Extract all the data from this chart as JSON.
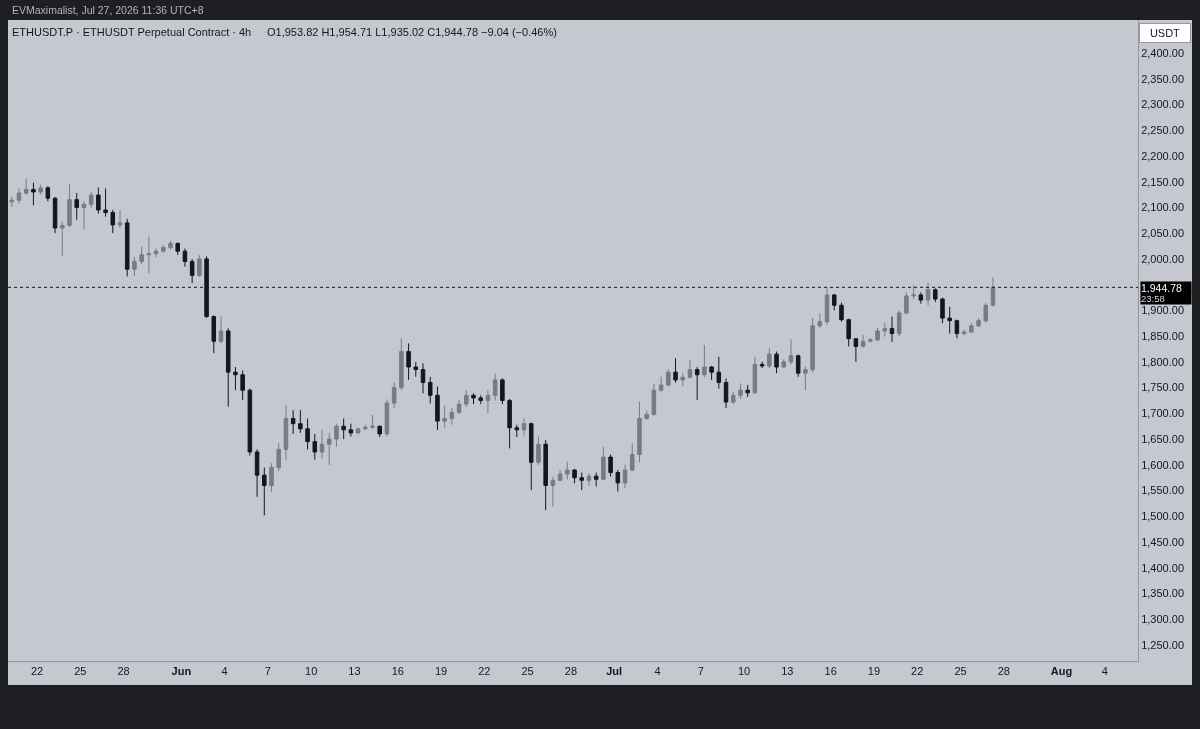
{
  "chart_data": {
    "type": "candlestick",
    "title": "ETHUSDT.P · ETHUSDT Perpetual Contract · 4h",
    "subtitle": "O1,953.82 H1,954.71 L1,935.02 C1,944.78 −9.04 (−0.46%)",
    "ylabel": "USDT",
    "annotations": [
      "EVMaximalist, Jul 27, 2026 11:36 UTC+8",
      "23:58"
    ],
    "x": [
      "2026-05-20T06:00",
      "2026-05-20T18:00",
      "2026-05-21T06:00",
      "2026-05-21T18:00",
      "2026-05-22T06:00",
      "2026-05-22T18:00",
      "2026-05-23T06:00",
      "2026-05-23T18:00",
      "2026-05-24T06:00",
      "2026-05-24T18:00",
      "2026-05-25T06:00",
      "2026-05-25T18:00",
      "2026-05-26T06:00",
      "2026-05-26T18:00",
      "2026-05-27T06:00",
      "2026-05-27T18:00",
      "2026-05-28T06:00",
      "2026-05-28T18:00",
      "2026-05-29T06:00",
      "2026-05-29T18:00",
      "2026-05-30T06:00",
      "2026-05-30T18:00",
      "2026-05-31T06:00",
      "2026-05-31T18:00",
      "2026-06-01T06:00",
      "2026-06-01T18:00",
      "2026-06-02T06:00",
      "2026-06-02T18:00",
      "2026-06-03T06:00",
      "2026-06-03T18:00",
      "2026-06-04T06:00",
      "2026-06-04T18:00",
      "2026-06-05T06:00",
      "2026-06-05T18:00",
      "2026-06-06T06:00",
      "2026-06-06T18:00",
      "2026-06-07T06:00",
      "2026-06-07T18:00",
      "2026-06-08T06:00",
      "2026-06-08T18:00",
      "2026-06-09T06:00",
      "2026-06-09T18:00",
      "2026-06-10T06:00",
      "2026-06-10T18:00",
      "2026-06-11T06:00",
      "2026-06-11T18:00",
      "2026-06-12T06:00",
      "2026-06-12T18:00",
      "2026-06-13T06:00",
      "2026-06-13T18:00",
      "2026-06-14T06:00",
      "2026-06-14T18:00",
      "2026-06-15T06:00",
      "2026-06-15T18:00",
      "2026-06-16T06:00",
      "2026-06-16T18:00",
      "2026-06-17T06:00",
      "2026-06-17T18:00",
      "2026-06-18T06:00",
      "2026-06-18T18:00",
      "2026-06-19T06:00",
      "2026-06-19T18:00",
      "2026-06-20T06:00",
      "2026-06-20T18:00",
      "2026-06-21T06:00",
      "2026-06-21T18:00",
      "2026-06-22T06:00",
      "2026-06-22T18:00",
      "2026-06-23T06:00",
      "2026-06-23T18:00",
      "2026-06-24T06:00",
      "2026-06-24T18:00",
      "2026-06-25T06:00",
      "2026-06-25T18:00",
      "2026-06-26T06:00",
      "2026-06-26T18:00",
      "2026-06-27T06:00",
      "2026-06-27T18:00",
      "2026-06-28T06:00",
      "2026-06-28T18:00",
      "2026-06-29T06:00",
      "2026-06-29T18:00",
      "2026-06-30T06:00",
      "2026-06-30T18:00",
      "2026-07-01T06:00",
      "2026-07-01T18:00",
      "2026-07-02T06:00",
      "2026-07-02T18:00",
      "2026-07-03T06:00",
      "2026-07-03T18:00",
      "2026-07-04T06:00",
      "2026-07-04T18:00",
      "2026-07-05T06:00",
      "2026-07-05T18:00",
      "2026-07-06T06:00",
      "2026-07-06T18:00",
      "2026-07-07T06:00",
      "2026-07-07T18:00",
      "2026-07-08T06:00",
      "2026-07-08T18:00",
      "2026-07-09T06:00",
      "2026-07-09T18:00",
      "2026-07-10T06:00",
      "2026-07-10T18:00",
      "2026-07-11T06:00",
      "2026-07-11T18:00",
      "2026-07-12T06:00",
      "2026-07-12T18:00",
      "2026-07-13T06:00",
      "2026-07-13T18:00",
      "2026-07-14T06:00",
      "2026-07-14T18:00",
      "2026-07-15T06:00",
      "2026-07-15T18:00",
      "2026-07-16T06:00",
      "2026-07-16T18:00",
      "2026-07-17T06:00",
      "2026-07-17T18:00",
      "2026-07-18T06:00",
      "2026-07-18T18:00",
      "2026-07-19T06:00",
      "2026-07-19T18:00",
      "2026-07-20T06:00",
      "2026-07-20T18:00",
      "2026-07-21T06:00",
      "2026-07-21T18:00",
      "2026-07-22T06:00",
      "2026-07-22T18:00",
      "2026-07-23T06:00",
      "2026-07-23T18:00",
      "2026-07-24T06:00",
      "2026-07-24T18:00",
      "2026-07-25T06:00",
      "2026-07-25T18:00",
      "2026-07-26T06:00",
      "2026-07-26T18:00",
      "2026-07-27T06:00"
    ],
    "ohlc": [
      [
        2111,
        2121,
        2101,
        2114
      ],
      [
        2114,
        2137,
        2108,
        2128
      ],
      [
        2128,
        2155,
        2124,
        2135
      ],
      [
        2135,
        2148,
        2104,
        2130
      ],
      [
        2130,
        2144,
        2125,
        2138
      ],
      [
        2138,
        2141,
        2112,
        2118
      ],
      [
        2118,
        2120,
        2050,
        2060
      ],
      [
        2060,
        2072,
        2006,
        2065
      ],
      [
        2065,
        2146,
        2062,
        2115
      ],
      [
        2115,
        2128,
        2076,
        2100
      ],
      [
        2100,
        2112,
        2058,
        2106
      ],
      [
        2106,
        2130,
        2099,
        2124
      ],
      [
        2124,
        2139,
        2088,
        2095
      ],
      [
        2095,
        2137,
        2082,
        2090
      ],
      [
        2090,
        2095,
        2050,
        2066
      ],
      [
        2066,
        2094,
        2060,
        2070
      ],
      [
        2070,
        2078,
        1966,
        1980
      ],
      [
        1980,
        2004,
        1966,
        1995
      ],
      [
        1995,
        2024,
        1990,
        2008
      ],
      [
        2008,
        2043,
        1972,
        2010
      ],
      [
        2010,
        2020,
        2003,
        2015
      ],
      [
        2015,
        2027,
        2012,
        2022
      ],
      [
        2022,
        2035,
        2018,
        2030
      ],
      [
        2030,
        2032,
        2008,
        2015
      ],
      [
        2015,
        2020,
        1985,
        1995
      ],
      [
        1995,
        2000,
        1953,
        1968
      ],
      [
        1968,
        2007,
        1965,
        2000
      ],
      [
        2000,
        2005,
        1885,
        1888
      ],
      [
        1888,
        1890,
        1817,
        1840
      ],
      [
        1840,
        1888,
        1836,
        1860
      ],
      [
        1860,
        1865,
        1713,
        1780
      ],
      [
        1780,
        1790,
        1745,
        1775
      ],
      [
        1775,
        1783,
        1726,
        1745
      ],
      [
        1745,
        1748,
        1618,
        1625
      ],
      [
        1625,
        1630,
        1538,
        1580
      ],
      [
        1580,
        1595,
        1502,
        1560
      ],
      [
        1560,
        1603,
        1548,
        1595
      ],
      [
        1595,
        1642,
        1588,
        1630
      ],
      [
        1630,
        1716,
        1610,
        1690
      ],
      [
        1690,
        1706,
        1660,
        1680
      ],
      [
        1680,
        1706,
        1662,
        1670
      ],
      [
        1670,
        1690,
        1630,
        1645
      ],
      [
        1645,
        1660,
        1610,
        1625
      ],
      [
        1625,
        1668,
        1612,
        1640
      ],
      [
        1640,
        1662,
        1600,
        1650
      ],
      [
        1650,
        1680,
        1635,
        1675
      ],
      [
        1675,
        1690,
        1650,
        1668
      ],
      [
        1668,
        1680,
        1655,
        1662
      ],
      [
        1662,
        1672,
        1660,
        1670
      ],
      [
        1670,
        1678,
        1668,
        1673
      ],
      [
        1673,
        1697,
        1670,
        1675
      ],
      [
        1675,
        1676,
        1654,
        1660
      ],
      [
        1660,
        1727,
        1655,
        1720
      ],
      [
        1720,
        1760,
        1710,
        1750
      ],
      [
        1750,
        1846,
        1745,
        1820
      ],
      [
        1820,
        1836,
        1765,
        1790
      ],
      [
        1790,
        1800,
        1771,
        1785
      ],
      [
        1785,
        1797,
        1739,
        1760
      ],
      [
        1760,
        1771,
        1719,
        1735
      ],
      [
        1735,
        1752,
        1668,
        1685
      ],
      [
        1685,
        1715,
        1672,
        1690
      ],
      [
        1690,
        1710,
        1678,
        1702
      ],
      [
        1702,
        1726,
        1698,
        1718
      ],
      [
        1718,
        1745,
        1712,
        1735
      ],
      [
        1735,
        1739,
        1718,
        1730
      ],
      [
        1730,
        1735,
        1718,
        1725
      ],
      [
        1725,
        1745,
        1700,
        1735
      ],
      [
        1735,
        1777,
        1725,
        1765
      ],
      [
        1765,
        1768,
        1718,
        1725
      ],
      [
        1725,
        1728,
        1632,
        1672
      ],
      [
        1672,
        1678,
        1654,
        1668
      ],
      [
        1668,
        1690,
        1655,
        1680
      ],
      [
        1680,
        1682,
        1551,
        1605
      ],
      [
        1605,
        1655,
        1600,
        1640
      ],
      [
        1640,
        1648,
        1512,
        1560
      ],
      [
        1560,
        1577,
        1519,
        1570
      ],
      [
        1570,
        1590,
        1568,
        1582
      ],
      [
        1582,
        1606,
        1572,
        1590
      ],
      [
        1590,
        1592,
        1564,
        1575
      ],
      [
        1575,
        1585,
        1551,
        1570
      ],
      [
        1570,
        1584,
        1560,
        1578
      ],
      [
        1578,
        1585,
        1558,
        1572
      ],
      [
        1572,
        1635,
        1570,
        1615
      ],
      [
        1615,
        1620,
        1577,
        1585
      ],
      [
        1585,
        1590,
        1548,
        1565
      ],
      [
        1565,
        1600,
        1555,
        1590
      ],
      [
        1590,
        1642,
        1588,
        1620
      ],
      [
        1620,
        1723,
        1605,
        1690
      ],
      [
        1690,
        1705,
        1688,
        1698
      ],
      [
        1698,
        1758,
        1695,
        1745
      ],
      [
        1745,
        1771,
        1742,
        1755
      ],
      [
        1755,
        1785,
        1752,
        1780
      ],
      [
        1780,
        1807,
        1760,
        1765
      ],
      [
        1765,
        1778,
        1752,
        1770
      ],
      [
        1770,
        1804,
        1768,
        1785
      ],
      [
        1785,
        1790,
        1726,
        1775
      ],
      [
        1775,
        1833,
        1770,
        1790
      ],
      [
        1790,
        1792,
        1765,
        1780
      ],
      [
        1780,
        1810,
        1748,
        1760
      ],
      [
        1760,
        1768,
        1710,
        1722
      ],
      [
        1722,
        1742,
        1718,
        1735
      ],
      [
        1735,
        1758,
        1728,
        1745
      ],
      [
        1745,
        1755,
        1732,
        1740
      ],
      [
        1740,
        1810,
        1738,
        1795
      ],
      [
        1795,
        1800,
        1788,
        1792
      ],
      [
        1792,
        1826,
        1788,
        1815
      ],
      [
        1815,
        1820,
        1778,
        1790
      ],
      [
        1790,
        1805,
        1788,
        1800
      ],
      [
        1800,
        1844,
        1795,
        1812
      ],
      [
        1812,
        1814,
        1771,
        1778
      ],
      [
        1778,
        1791,
        1745,
        1785
      ],
      [
        1785,
        1885,
        1780,
        1870
      ],
      [
        1870,
        1894,
        1866,
        1878
      ],
      [
        1878,
        1945,
        1872,
        1930
      ],
      [
        1930,
        1932,
        1900,
        1910
      ],
      [
        1910,
        1915,
        1878,
        1882
      ],
      [
        1882,
        1884,
        1830,
        1845
      ],
      [
        1845,
        1846,
        1800,
        1830
      ],
      [
        1830,
        1852,
        1828,
        1840
      ],
      [
        1840,
        1846,
        1838,
        1843
      ],
      [
        1843,
        1866,
        1840,
        1860
      ],
      [
        1860,
        1876,
        1849,
        1865
      ],
      [
        1865,
        1888,
        1839,
        1855
      ],
      [
        1855,
        1900,
        1850,
        1895
      ],
      [
        1895,
        1935,
        1892,
        1928
      ],
      [
        1928,
        1949,
        1922,
        1930
      ],
      [
        1930,
        1935,
        1913,
        1920
      ],
      [
        1920,
        1954,
        1910,
        1940
      ],
      [
        1940,
        1943,
        1916,
        1922
      ],
      [
        1922,
        1925,
        1875,
        1885
      ],
      [
        1885,
        1907,
        1855,
        1880
      ],
      [
        1880,
        1882,
        1846,
        1855
      ],
      [
        1855,
        1862,
        1852,
        1858
      ],
      [
        1858,
        1875,
        1856,
        1870
      ],
      [
        1870,
        1885,
        1868,
        1880
      ],
      [
        1880,
        1914,
        1876,
        1910
      ],
      [
        1910,
        1964,
        1908,
        1944.78
      ]
    ],
    "colors": [
      "#787b86",
      "#787b86",
      "#787b86",
      "#131722",
      "#787b86",
      "#131722",
      "#131722",
      "#787b86",
      "#787b86",
      "#131722",
      "#787b86",
      "#787b86",
      "#131722",
      "#131722",
      "#131722",
      "#787b86",
      "#131722",
      "#787b86",
      "#787b86",
      "#787b86",
      "#787b86",
      "#787b86",
      "#787b86",
      "#131722",
      "#131722",
      "#131722",
      "#787b86",
      "#131722",
      "#131722",
      "#787b86",
      "#131722",
      "#131722",
      "#131722",
      "#131722",
      "#131722",
      "#131722",
      "#787b86",
      "#787b86",
      "#787b86",
      "#131722",
      "#131722",
      "#131722",
      "#131722",
      "#787b86",
      "#787b86",
      "#787b86",
      "#131722",
      "#131722",
      "#787b86",
      "#787b86",
      "#787b86",
      "#131722",
      "#787b86",
      "#787b86",
      "#787b86",
      "#131722",
      "#131722",
      "#131722",
      "#131722",
      "#131722",
      "#787b86",
      "#787b86",
      "#787b86",
      "#787b86",
      "#131722",
      "#131722",
      "#787b86",
      "#787b86",
      "#131722",
      "#131722",
      "#131722",
      "#787b86",
      "#131722",
      "#787b86",
      "#131722",
      "#787b86",
      "#787b86",
      "#787b86",
      "#131722",
      "#131722",
      "#787b86",
      "#131722",
      "#787b86",
      "#131722",
      "#131722",
      "#787b86",
      "#787b86",
      "#787b86",
      "#787b86",
      "#787b86",
      "#787b86",
      "#787b86",
      "#131722",
      "#787b86",
      "#787b86",
      "#131722",
      "#787b86",
      "#131722",
      "#131722",
      "#131722",
      "#787b86",
      "#787b86",
      "#131722",
      "#787b86",
      "#131722",
      "#787b86",
      "#131722",
      "#787b86",
      "#787b86",
      "#131722",
      "#787b86",
      "#787b86",
      "#787b86",
      "#787b86",
      "#131722",
      "#131722",
      "#131722",
      "#131722",
      "#787b86",
      "#787b86",
      "#787b86",
      "#787b86",
      "#131722",
      "#787b86",
      "#787b86",
      "#787b86",
      "#131722",
      "#787b86",
      "#131722",
      "#131722",
      "#131722",
      "#131722",
      "#787b86",
      "#787b86",
      "#787b86",
      "#787b86",
      "#787b86"
    ],
    "xlim": [
      "2026-05-19T23:43",
      "2026-08-06T07:12"
    ],
    "xticks": [
      {
        "value": "2026-05-22",
        "label": "22"
      },
      {
        "value": "2026-05-25",
        "label": "25"
      },
      {
        "value": "2026-05-28",
        "label": "28"
      },
      {
        "value": "2026-06-01",
        "label": "Jun"
      },
      {
        "value": "2026-06-04",
        "label": "4"
      },
      {
        "value": "2026-06-07",
        "label": "7"
      },
      {
        "value": "2026-06-10",
        "label": "10"
      },
      {
        "value": "2026-06-13",
        "label": "13"
      },
      {
        "value": "2026-06-16",
        "label": "16"
      },
      {
        "value": "2026-06-19",
        "label": "19"
      },
      {
        "value": "2026-06-22",
        "label": "22"
      },
      {
        "value": "2026-06-25",
        "label": "25"
      },
      {
        "value": "2026-06-28",
        "label": "28"
      },
      {
        "value": "2026-07-01",
        "label": "Jul"
      },
      {
        "value": "2026-07-04",
        "label": "4"
      },
      {
        "value": "2026-07-07",
        "label": "7"
      },
      {
        "value": "2026-07-10",
        "label": "10"
      },
      {
        "value": "2026-07-13",
        "label": "13"
      },
      {
        "value": "2026-07-16",
        "label": "16"
      },
      {
        "value": "2026-07-19",
        "label": "19"
      },
      {
        "value": "2026-07-22",
        "label": "22"
      },
      {
        "value": "2026-07-25",
        "label": "25"
      },
      {
        "value": "2026-07-28",
        "label": "28"
      },
      {
        "value": "2026-08-01",
        "label": "Aug"
      },
      {
        "value": "2026-08-04",
        "label": "4"
      }
    ],
    "ylim": [
      1219,
      2464
    ],
    "yticks": [
      {
        "value": 1250,
        "label": "1,250.00"
      },
      {
        "value": 1300,
        "label": "1,300.00"
      },
      {
        "value": 1350,
        "label": "1,350.00"
      },
      {
        "value": 1400,
        "label": "1,400.00"
      },
      {
        "value": 1450,
        "label": "1,450.00"
      },
      {
        "value": 1500,
        "label": "1,500.00"
      },
      {
        "value": 1550,
        "label": "1,550.00"
      },
      {
        "value": 1600,
        "label": "1,600.00"
      },
      {
        "value": 1650,
        "label": "1,650.00"
      },
      {
        "value": 1700,
        "label": "1,700.00"
      },
      {
        "value": 1750,
        "label": "1,750.00"
      },
      {
        "value": 1800,
        "label": "1,800.00"
      },
      {
        "value": 1850,
        "label": "1,850.00"
      },
      {
        "value": 1900,
        "label": "1,900.00"
      },
      {
        "value": 2000,
        "label": "2,000.00"
      },
      {
        "value": 2050,
        "label": "2,050.00"
      },
      {
        "value": 2100,
        "label": "2,100.00"
      },
      {
        "value": 2150,
        "label": "2,150.00"
      },
      {
        "value": 2200,
        "label": "2,200.00"
      },
      {
        "value": 2250,
        "label": "2,250.00"
      },
      {
        "value": 2300,
        "label": "2,300.00"
      },
      {
        "value": 2350,
        "label": "2,350.00"
      },
      {
        "value": 2400,
        "label": "2,400.00"
      }
    ],
    "ref_lines": [
      {
        "axis": "y",
        "value": 1944.78,
        "label": "1,944.78",
        "color": "#131722",
        "line_style": "dotted"
      }
    ]
  }
}
